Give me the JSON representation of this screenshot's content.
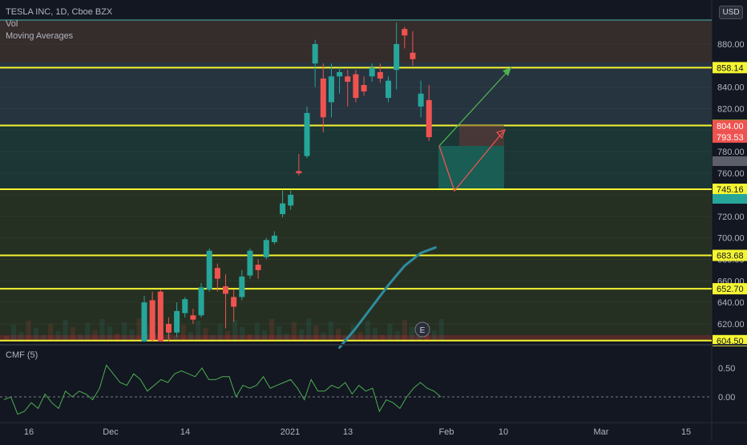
{
  "header": {
    "symbol": "TESLA INC, 1D, Cboe BZX",
    "indicators": [
      "Vol",
      "Moving Averages"
    ]
  },
  "currency_badge": "USD",
  "price_axis": {
    "ticks": [
      880,
      860,
      840,
      820,
      800,
      780,
      760,
      740,
      720,
      700,
      680,
      660,
      640,
      620
    ],
    "tick_labels": [
      "880.00",
      "860.00",
      "840.00",
      "820.00",
      "800.00",
      "780.00",
      "760.00",
      "740.00",
      "720.00",
      "700.00",
      "680.00",
      "660.00",
      "640.00",
      "620.00"
    ],
    "range": [
      600,
      900
    ]
  },
  "horizontal_levels": [
    {
      "label": "858.14",
      "value": 858.14,
      "color": "#f5f531"
    },
    {
      "label": "804.40",
      "value": 804.4,
      "color": "#f5f531"
    },
    {
      "label": "745.16",
      "value": 745.16,
      "color": "#f5f531"
    },
    {
      "label": "683.68",
      "value": 683.68,
      "color": "#f5f531"
    },
    {
      "label": "652.70",
      "value": 652.7,
      "color": "#f5f531"
    },
    {
      "label": "604.50",
      "value": 604.5,
      "color": "#f5f531"
    }
  ],
  "price_tags": [
    {
      "label": "804.00",
      "value": 804.0,
      "color": "#ef5350"
    },
    {
      "label": "793.53",
      "value": 793.53,
      "color": "#ef5350"
    }
  ],
  "earnings_marker": "E",
  "cmf": {
    "title": "CMF (5)",
    "ticks": [
      0.5,
      0.0
    ],
    "tick_labels": [
      "0.50",
      "0.00"
    ],
    "range": [
      -0.45,
      0.8
    ]
  },
  "time_axis": {
    "labels": [
      "16",
      "Dec",
      "14",
      "2021",
      "13",
      "Feb",
      "10",
      "Mar",
      "15"
    ]
  },
  "colors": {
    "background": "#131722",
    "up": "#26a69a",
    "down": "#ef5350",
    "level": "#f5f531",
    "ma": "#2e8ba0",
    "cmf_line": "#4caf50"
  },
  "chart_data": {
    "type": "candlestick",
    "title": "TESLA INC, 1D, Cboe BZX",
    "y_range": [
      600,
      900
    ],
    "candles": [
      {
        "o": 596,
        "h": 646,
        "l": 596,
        "c": 640
      },
      {
        "o": 642,
        "h": 650,
        "l": 598,
        "c": 605
      },
      {
        "o": 650,
        "h": 652,
        "l": 598,
        "c": 600
      },
      {
        "o": 620,
        "h": 626,
        "l": 602,
        "c": 612
      },
      {
        "o": 612,
        "h": 640,
        "l": 608,
        "c": 632
      },
      {
        "o": 630,
        "h": 645,
        "l": 626,
        "c": 643
      },
      {
        "o": 628,
        "h": 634,
        "l": 620,
        "c": 624
      },
      {
        "o": 628,
        "h": 658,
        "l": 626,
        "c": 654
      },
      {
        "o": 652,
        "h": 690,
        "l": 650,
        "c": 688
      },
      {
        "o": 672,
        "h": 676,
        "l": 650,
        "c": 662
      },
      {
        "o": 655,
        "h": 666,
        "l": 616,
        "c": 648
      },
      {
        "o": 645,
        "h": 652,
        "l": 622,
        "c": 636
      },
      {
        "o": 645,
        "h": 670,
        "l": 642,
        "c": 664
      },
      {
        "o": 665,
        "h": 690,
        "l": 662,
        "c": 688
      },
      {
        "o": 675,
        "h": 680,
        "l": 662,
        "c": 670
      },
      {
        "o": 682,
        "h": 700,
        "l": 680,
        "c": 698
      },
      {
        "o": 696,
        "h": 706,
        "l": 694,
        "c": 702
      },
      {
        "o": 722,
        "h": 744,
        "l": 719,
        "c": 732
      },
      {
        "o": 730,
        "h": 744,
        "l": 726,
        "c": 740
      },
      {
        "o": 762,
        "h": 778,
        "l": 758,
        "c": 760
      },
      {
        "o": 776,
        "h": 822,
        "l": 774,
        "c": 816
      },
      {
        "o": 862,
        "h": 884,
        "l": 840,
        "c": 880
      },
      {
        "o": 848,
        "h": 862,
        "l": 798,
        "c": 812
      },
      {
        "o": 826,
        "h": 862,
        "l": 812,
        "c": 850
      },
      {
        "o": 850,
        "h": 858,
        "l": 834,
        "c": 854
      },
      {
        "o": 850,
        "h": 856,
        "l": 822,
        "c": 845
      },
      {
        "o": 852,
        "h": 856,
        "l": 826,
        "c": 830
      },
      {
        "o": 842,
        "h": 850,
        "l": 832,
        "c": 836
      },
      {
        "o": 850,
        "h": 862,
        "l": 845,
        "c": 858
      },
      {
        "o": 854,
        "h": 862,
        "l": 844,
        "c": 848
      },
      {
        "o": 830,
        "h": 850,
        "l": 826,
        "c": 846
      },
      {
        "o": 856,
        "h": 900,
        "l": 838,
        "c": 880
      },
      {
        "o": 894,
        "h": 896,
        "l": 876,
        "c": 888
      },
      {
        "o": 872,
        "h": 892,
        "l": 860,
        "c": 866
      },
      {
        "o": 822,
        "h": 846,
        "l": 812,
        "c": 834
      },
      {
        "o": 828,
        "h": 842,
        "l": 790,
        "c": 793.53
      }
    ],
    "moving_average": [
      {
        "i": 24,
        "v": 598
      },
      {
        "i": 26,
        "v": 616
      },
      {
        "i": 28,
        "v": 636
      },
      {
        "i": 30,
        "v": 656
      },
      {
        "i": 32,
        "v": 674
      },
      {
        "i": 34,
        "v": 686
      },
      {
        "i": 35.8,
        "v": 691
      }
    ],
    "cmf_values": [
      -0.05,
      0.0,
      -0.3,
      -0.25,
      -0.1,
      -0.2,
      0.05,
      -0.1,
      -0.2,
      0.1,
      0.0,
      0.1,
      0.05,
      -0.05,
      0.15,
      0.55,
      0.4,
      0.25,
      0.2,
      0.4,
      0.3,
      0.1,
      0.2,
      0.3,
      0.25,
      0.4,
      0.45,
      0.4,
      0.35,
      0.5,
      0.3,
      0.3,
      0.35,
      0.35,
      0.0,
      0.2,
      0.15,
      0.2,
      0.35,
      0.15,
      0.2,
      0.25,
      0.3,
      0.15,
      -0.05,
      0.3,
      0.1,
      0.1,
      0.2,
      0.15,
      0.25,
      0.05,
      0.2,
      0.1,
      0.15,
      -0.25,
      -0.05,
      -0.1,
      -0.2,
      0.0,
      0.15,
      0.25,
      0.15,
      0.1,
      0.0
    ]
  }
}
